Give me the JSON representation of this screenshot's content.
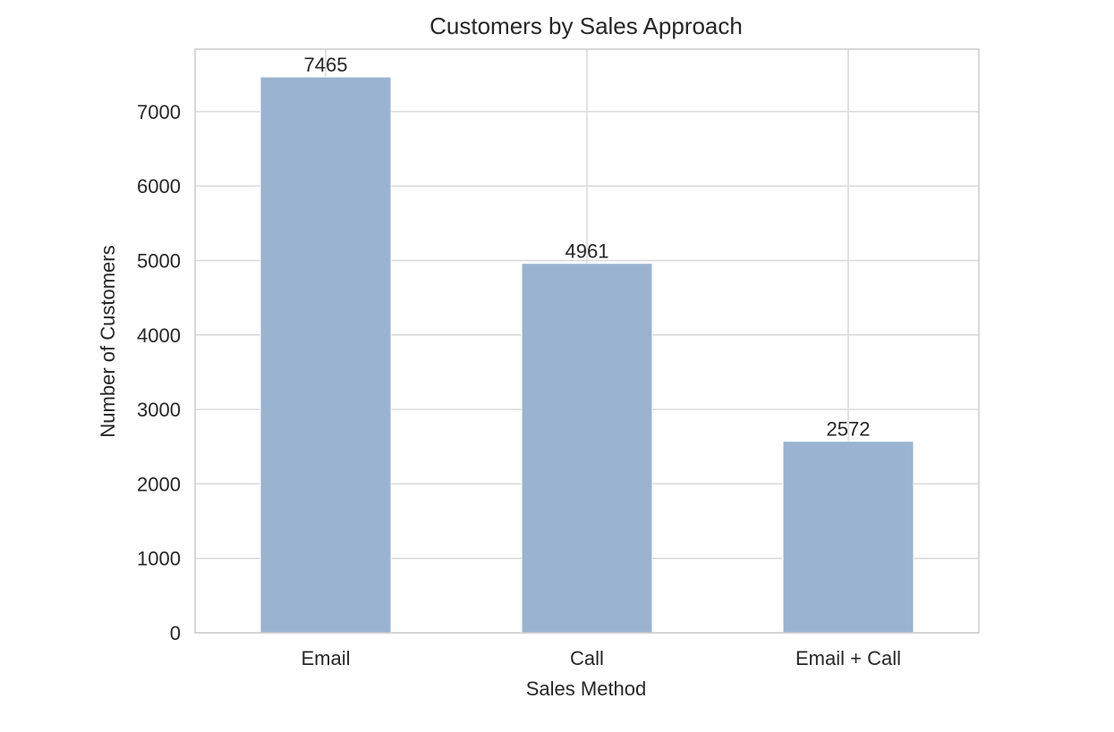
{
  "chart_data": {
    "type": "bar",
    "title": "Customers by Sales Approach",
    "xlabel": "Sales Method",
    "ylabel": "Number of Customers",
    "categories": [
      "Email",
      "Call",
      "Email + Call"
    ],
    "values": [
      7465,
      4961,
      2572
    ],
    "data_labels": [
      "7465",
      "4961",
      "2572"
    ],
    "ylim": [
      0,
      7838
    ],
    "yticks": [
      0,
      1000,
      2000,
      3000,
      4000,
      5000,
      6000,
      7000
    ],
    "ytick_labels": [
      "0",
      "1000",
      "2000",
      "3000",
      "4000",
      "5000",
      "6000",
      "7000"
    ],
    "grid": true,
    "bar_color": "#9ab3d1",
    "grid_color": "#d9d9d9",
    "spine_color": "#cccccc"
  }
}
